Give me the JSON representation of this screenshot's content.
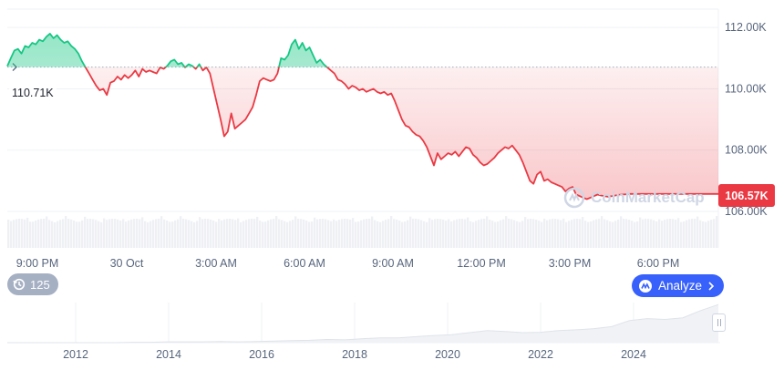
{
  "chart_data": {
    "type": "line",
    "x_ticks": [
      "9:00 PM",
      "30 Oct",
      "3:00 AM",
      "6:00 AM",
      "9:00 AM",
      "12:00 PM",
      "3:00 PM",
      "6:00 PM"
    ],
    "y_ticks": [
      "112.00K",
      "110.00K",
      "108.00K",
      "106.00K"
    ],
    "ylim": [
      106000,
      112600
    ],
    "baseline": 110710,
    "series": [
      {
        "x": [
          0,
          0.5,
          1,
          1.5,
          2,
          2.5,
          3,
          3.5,
          4,
          4.5,
          5,
          5.5,
          6,
          6.5,
          7,
          7.5,
          8,
          8.5,
          9,
          9.5,
          10,
          10.5,
          11,
          11.5,
          12,
          12.5,
          13,
          13.5,
          14,
          14.5,
          15,
          15.5,
          16,
          16.5,
          17,
          17.5,
          18,
          18.5,
          19,
          19.5,
          20,
          20.5,
          21,
          21.5,
          22,
          22.5,
          23,
          23.5,
          24,
          24.5,
          25,
          25.5,
          26,
          26.5,
          27,
          27.5,
          28,
          28.5,
          29,
          29.5,
          30,
          30.5,
          31,
          31.5,
          32,
          32.5,
          33,
          33.5,
          34,
          34.5,
          35,
          35.5,
          36,
          36.5,
          37,
          37.5,
          38,
          38.5,
          39,
          39.5,
          40,
          40.5,
          41,
          41.5,
          42,
          42.5,
          43,
          43.5,
          44,
          44.5,
          45,
          45.5,
          46,
          46.5,
          47,
          47.5,
          48,
          48.5,
          49,
          49.5,
          50,
          50.5,
          51,
          51.5,
          52,
          52.5,
          53,
          53.5,
          54,
          54.5,
          55,
          55.5,
          56,
          56.5,
          57,
          57.5,
          58,
          58.5,
          59,
          59.5,
          60,
          60.5,
          61,
          61.5,
          62,
          62.5,
          63,
          63.5,
          64,
          64.5,
          65,
          65.5,
          66,
          66.5,
          67,
          67.5,
          68,
          68.5,
          69,
          69.5,
          70,
          70.5,
          71,
          71.5,
          72,
          72.5,
          73,
          73.5,
          74,
          74.5,
          75,
          75.5,
          76,
          76.5,
          77,
          77.5,
          78,
          78.5,
          79,
          79.5,
          80,
          80.5,
          81,
          81.5,
          82,
          82.5,
          83,
          83.5,
          84,
          84.5,
          85,
          85.5,
          86,
          86.5,
          87,
          87.5,
          88,
          88.5,
          89,
          89.5,
          90,
          90.5,
          91,
          91.5,
          92,
          92.5,
          93,
          93.5,
          94,
          94.5,
          95,
          95.5,
          96,
          96.5,
          97,
          97.5,
          98,
          98.5,
          99,
          99.5,
          100
        ],
        "y": [
          110740,
          111000,
          111250,
          111300,
          111150,
          111400,
          111350,
          111500,
          111450,
          111600,
          111550,
          111700,
          111800,
          111650,
          111750,
          111600,
          111500,
          111550,
          111400,
          111300,
          111150,
          110900,
          110700,
          110500,
          110300,
          110100,
          109950,
          110000,
          109800,
          110200,
          110250,
          110400,
          110300,
          110450,
          110350,
          110450,
          110600,
          110400,
          110650,
          110550,
          110600,
          110550,
          110500,
          110700,
          110650,
          110750,
          110900,
          110950,
          110800,
          110850,
          110700,
          110800,
          110750,
          110650,
          110800,
          110600,
          110700,
          110500,
          110000,
          109500,
          109000,
          108450,
          108600,
          109200,
          108700,
          108800,
          108900,
          109000,
          109200,
          109400,
          109800,
          110250,
          110350,
          110300,
          110250,
          110300,
          110500,
          111000,
          110950,
          111100,
          111450,
          111600,
          111300,
          111500,
          111250,
          111350,
          111100,
          110850,
          110950,
          110800,
          110700,
          110600,
          110500,
          110300,
          110250,
          110150,
          110000,
          110100,
          110050,
          109950,
          110000,
          109900,
          109950,
          110000,
          109900,
          109850,
          109900,
          109800,
          109850,
          109600,
          109300,
          109000,
          108800,
          108750,
          108600,
          108500,
          108450,
          108300,
          108100,
          107800,
          107500,
          107900,
          107700,
          107800,
          107900,
          107850,
          107950,
          107800,
          107950,
          108100,
          108050,
          107850,
          107750,
          107600,
          107500,
          107550,
          107650,
          107750,
          107900,
          108000,
          108100,
          108050,
          108150,
          108000,
          107850,
          107600,
          107300,
          107000,
          106900,
          107200,
          107300,
          107000,
          107050,
          106950,
          106900,
          106850,
          106800,
          106650,
          106750,
          106800,
          106550,
          106500,
          106450,
          106400,
          106450,
          106500,
          106550,
          106520,
          106500,
          106480,
          106500,
          106520,
          106540,
          106550,
          106560,
          106570,
          106570,
          106570,
          106570,
          106570,
          106570,
          106570,
          106570,
          106570,
          106570,
          106570,
          106570,
          106570,
          106570,
          106570,
          106570,
          106570,
          106570,
          106570,
          106570,
          106570,
          106570,
          106570,
          106570,
          106570,
          106570
        ]
      }
    ],
    "current_price_label": "106.57K",
    "open_price_label": "110.71K",
    "volume_present": true,
    "navigator": {
      "x_ticks": [
        "2012",
        "2014",
        "2016",
        "2018",
        "2020",
        "2022",
        "2024"
      ],
      "y": [
        0,
        0,
        0,
        0,
        0,
        0,
        0,
        0.01,
        0.01,
        0.02,
        0.02,
        0.02,
        0.03,
        0.02,
        0.03,
        0.04,
        0.05,
        0.06,
        0.08,
        0.07,
        0.1,
        0.12,
        0.12,
        0.15,
        0.18,
        0.2,
        0.25,
        0.3,
        0.28,
        0.25,
        0.26,
        0.3,
        0.32,
        0.35,
        0.4,
        0.55,
        0.6,
        0.58,
        0.62,
        0.8,
        0.95
      ]
    },
    "up_color": "#16c784",
    "down_color": "#ea3943"
  },
  "ui": {
    "history_count": "125",
    "history_icon": "history-icon",
    "analyze_label": "Analyze",
    "analyze_icon": "coinmarketcap-logo-icon",
    "watermark_text": "CoinMarketCap"
  }
}
